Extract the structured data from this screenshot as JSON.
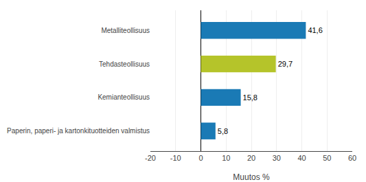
{
  "chart_data": {
    "type": "bar",
    "orientation": "horizontal",
    "categories": [
      "Paperin, paperi- ja kartonkituotteiden valmistus",
      "Kemianteollisuus",
      "Tehdasteollisuus",
      "Metalliteollisuus"
    ],
    "values": [
      5.8,
      15.8,
      29.7,
      41.6
    ],
    "value_labels": [
      "5,8",
      "15,8",
      "29,7",
      "41,6"
    ],
    "data_labels": true,
    "colors": [
      "#1a7ab5",
      "#1a7ab5",
      "#b5c42a",
      "#1a7ab5"
    ],
    "xlabel": "Muutos %",
    "xlim": [
      -20,
      60
    ],
    "xticks": [
      -20,
      -10,
      0,
      10,
      20,
      30,
      40,
      50,
      60
    ],
    "grid": true
  }
}
